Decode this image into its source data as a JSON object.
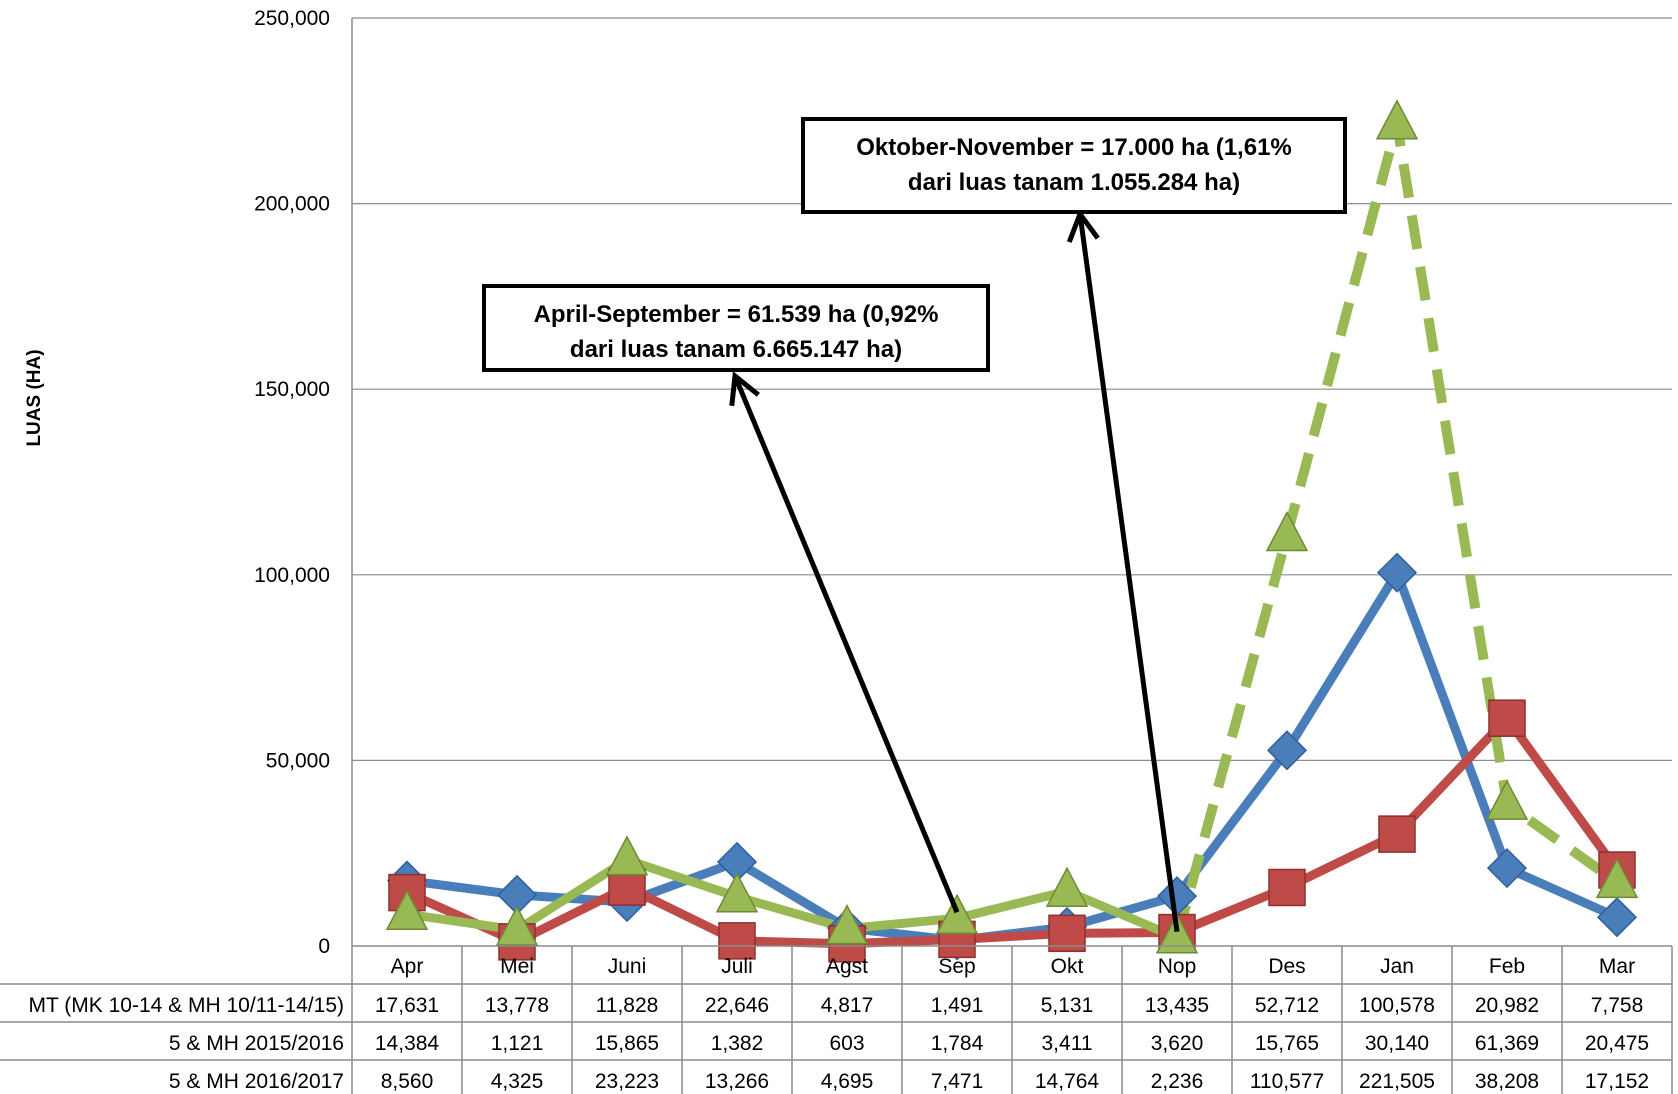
{
  "chart_data": {
    "type": "line",
    "ylabel": "LUAS (HA)",
    "ylim": [
      0,
      250000
    ],
    "yticks": [
      "0",
      "50,000",
      "100,000",
      "150,000",
      "200,000",
      "250,000"
    ],
    "grid": true,
    "categories": [
      "Apr",
      "Mei",
      "Juni",
      "Juli",
      "Agst",
      "Sep",
      "Okt",
      "Nop",
      "Des",
      "Jan",
      "Feb",
      "Mar"
    ],
    "series": [
      {
        "name": "MT (MK 10-14 & MH 10/11-14/15)",
        "color": "#4a7ebb",
        "marker": "diamond",
        "style": "solid",
        "values": [
          17631,
          13778,
          11828,
          22646,
          4817,
          1491,
          5131,
          13435,
          52712,
          100578,
          20982,
          7758
        ],
        "labels": [
          "17,631",
          "13,778",
          "11,828",
          "22,646",
          "4,817",
          "1,491",
          "5,131",
          "13,435",
          "52,712",
          "100,578",
          "20,982",
          "7,758"
        ]
      },
      {
        "name": "5 & MH 2015/2016",
        "color": "#be4b48",
        "marker": "square",
        "style": "solid",
        "values": [
          14384,
          1121,
          15865,
          1382,
          603,
          1784,
          3411,
          3620,
          15765,
          30140,
          61369,
          20475
        ],
        "labels": [
          "14,384",
          "1,121",
          "15,865",
          "1,382",
          "603",
          "1,784",
          "3,411",
          "3,620",
          "15,765",
          "30,140",
          "61,369",
          "20,475"
        ]
      },
      {
        "name": "5 & MH 2016/2017",
        "color": "#98b954",
        "marker": "triangle",
        "style": "solid-then-dashed",
        "values": [
          8560,
          4325,
          23223,
          13266,
          4695,
          7471,
          14764,
          2236,
          110577,
          221505,
          38208,
          17152
        ],
        "labels": [
          "8,560",
          "4,325",
          "23,223",
          "13,266",
          "4,695",
          "7,471",
          "14,764",
          "2,236",
          "110,577",
          "221,505",
          "38,208",
          "17,152"
        ]
      }
    ],
    "annotations": [
      {
        "lines": [
          "April-September = 61.539 ha (0,92%",
          "dari luas tanam 6.665.147 ha)"
        ],
        "arrow_to_category": "Sep"
      },
      {
        "lines": [
          "Oktober-November  = 17.000 ha (1,61%",
          "dari luas tanam 1.055.284 ha)"
        ],
        "arrow_to_category": "Nop"
      }
    ]
  }
}
